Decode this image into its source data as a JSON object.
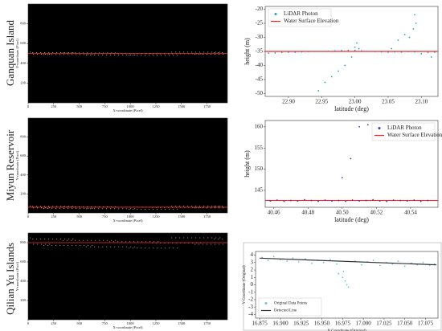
{
  "row_labels": [
    "Ganquan Island",
    "Miyun Reservoir",
    "Qilian Yu Islands"
  ],
  "chart_data": [
    {
      "type": "image",
      "xlabel": "X-coordinate (Pixel)",
      "ylabel": "Y-coordinate (Pixel)",
      "xlim": [
        0,
        1950
      ],
      "ylim": [
        0,
        1000
      ],
      "xticks": [
        0,
        250,
        500,
        750,
        1000,
        1250,
        1500,
        1750
      ],
      "yticks": [
        200,
        400,
        600,
        800
      ],
      "hline": {
        "value": 500,
        "color": "#ff2a2a"
      }
    },
    {
      "type": "scatter",
      "xlabel": "latitude (deg)",
      "ylabel": "height (m)",
      "xlim": [
        22.865,
        23.125
      ],
      "ylim": [
        -51,
        -19
      ],
      "legend": "upper left",
      "xticks": [
        {
          "value": 22.9,
          "label": "22.90"
        },
        {
          "value": 22.95,
          "label": "22.95"
        },
        {
          "value": 23.0,
          "label": "23.00"
        },
        {
          "value": 23.05,
          "label": "23.05"
        },
        {
          "value": 23.1,
          "label": "23.10"
        }
      ],
      "yticks": [
        -50,
        -45,
        -40,
        -35,
        -30,
        -25,
        -20
      ],
      "series": [
        {
          "name": "LiDAR Photon",
          "color": "#2a9fb5",
          "x": [
            22.87,
            22.88,
            22.89,
            22.9,
            22.91,
            22.92,
            22.93,
            22.94,
            22.95,
            22.96,
            22.97,
            22.98,
            22.99,
            23.0,
            23.01,
            23.02,
            23.03,
            23.04,
            23.05,
            23.06,
            23.07,
            23.08,
            23.09,
            23.1,
            23.11,
            23.12,
            22.945,
            22.955,
            22.965,
            22.975,
            22.985,
            22.995,
            23.0,
            23.003,
            23.006,
            23.055,
            23.065,
            23.075,
            23.082,
            23.088,
            23.09,
            23.092,
            23.1,
            23.115
          ],
          "values": [
            -35.6,
            -35.5,
            -35.4,
            -35.3,
            -35.3,
            -35.2,
            -35.1,
            -35,
            -35,
            -34.9,
            -34.8,
            -34.7,
            -34.6,
            -34.6,
            -34.8,
            -35,
            -35.1,
            -35.2,
            -35.3,
            -35.2,
            -35.3,
            -35.1,
            -35.2,
            -35,
            -35.4,
            -35.3,
            -49,
            -46,
            -44,
            -42,
            -40,
            -37,
            -33.5,
            -32,
            -34,
            -34,
            -31,
            -29,
            -30,
            -27,
            -22,
            -25,
            -35.8,
            -37
          ]
        }
      ],
      "hline": {
        "name": "Water Surface Elevation",
        "value": -35,
        "color": "#ff2020"
      }
    },
    {
      "type": "image",
      "xlabel": "X-coordinate (Pixel)",
      "ylabel": "Y-coordinate (Pixel)",
      "xlim": [
        0,
        1950
      ],
      "ylim": [
        0,
        1000
      ],
      "xticks": [
        0,
        250,
        500,
        750,
        1000,
        1250,
        1500,
        1750
      ],
      "yticks": [
        200,
        400,
        600,
        800
      ],
      "hline": {
        "value": 60,
        "color": "#ff2a2a"
      }
    },
    {
      "type": "scatter",
      "xlabel": "latitude (deg)",
      "ylabel": "height (m)",
      "xlim": [
        40.455,
        40.556
      ],
      "ylim": [
        141,
        161.5
      ],
      "legend": "upper right",
      "xticks": [
        {
          "value": 40.46,
          "label": "40.46"
        },
        {
          "value": 40.48,
          "label": "40.48"
        },
        {
          "value": 40.5,
          "label": "40.50"
        },
        {
          "value": 40.52,
          "label": "40.52"
        },
        {
          "value": 40.54,
          "label": "40.54"
        }
      ],
      "yticks": [
        145,
        150,
        155,
        160
      ],
      "series": [
        {
          "name": "LiDAR Photon",
          "color": "#3c3cb4",
          "x": [
            40.458,
            40.462,
            40.466,
            40.47,
            40.474,
            40.478,
            40.482,
            40.486,
            40.49,
            40.494,
            40.498,
            40.502,
            40.506,
            40.51,
            40.514,
            40.518,
            40.522,
            40.526,
            40.53,
            40.534,
            40.538,
            40.542,
            40.546,
            40.55,
            40.5,
            40.505,
            40.51,
            40.515
          ],
          "values": [
            142.5,
            142.7,
            142.4,
            142.6,
            142.5,
            142.8,
            142.6,
            142.4,
            142.7,
            142.5,
            142.6,
            142.4,
            142.7,
            142.5,
            142.6,
            142.8,
            142.5,
            142.4,
            142.7,
            142.6,
            142.5,
            142.7,
            142.4,
            142.6,
            148,
            152.5,
            160,
            160.5
          ]
        }
      ],
      "hline": {
        "name": "Water Surface Elevation",
        "value": 142.6,
        "color": "#ff2020"
      }
    },
    {
      "type": "image",
      "xlabel": "X-coordinate (Pixel)",
      "ylabel": "Y-coordinate (Pixel)",
      "xlim": [
        0,
        1950
      ],
      "ylim": [
        0,
        900
      ],
      "xticks": [
        0,
        250,
        500,
        750,
        1000,
        1250,
        1500,
        1750
      ],
      "yticks": [
        200,
        400,
        600,
        800
      ],
      "hline": {
        "value": 800,
        "color": "#ff2a2a"
      }
    },
    {
      "type": "scatter",
      "xlabel": "X Coordinate (Original)",
      "ylabel": "Y Coordinate (Original)",
      "xlim": [
        16.87,
        17.09
      ],
      "ylim": [
        -4.5,
        4.5
      ],
      "legend": "lower left",
      "xticks": [
        16.875,
        {
          "value": 16.9,
          "label": "16.900"
        },
        16.925,
        {
          "value": 16.95,
          "label": "16.950"
        },
        16.975,
        {
          "value": 17.0,
          "label": "17.000"
        },
        17.025,
        {
          "value": 17.05,
          "label": "17.050"
        },
        17.075
      ],
      "yticks": [
        -4,
        -3,
        -2,
        -1,
        0,
        1,
        2,
        3,
        4
      ],
      "series": [
        {
          "name": "Original Data Points",
          "color": "#6fc3e0",
          "x": [
            16.878,
            16.885,
            16.892,
            16.9,
            16.908,
            16.915,
            16.922,
            16.93,
            16.938,
            16.945,
            16.952,
            16.96,
            16.968,
            16.99,
            16.998,
            17.005,
            17.012,
            17.02,
            17.028,
            17.035,
            17.042,
            17.05,
            17.058,
            17.065,
            17.072,
            17.08,
            17.086,
            16.97,
            16.975,
            16.978,
            16.98,
            16.982,
            16.976
          ],
          "values": [
            3.7,
            3.3,
            3.8,
            3.4,
            3.2,
            3.6,
            3.1,
            3.5,
            2.9,
            3.3,
            3.0,
            3.4,
            2.8,
            3.2,
            2.7,
            3.1,
            3.3,
            2.6,
            3.0,
            2.8,
            3.2,
            2.5,
            2.9,
            2.7,
            3.0,
            2.6,
            2.8,
            1.5,
            1.0,
            0.5,
            0,
            -0.3,
            1.8
          ]
        },
        {
          "name": "Detected Line",
          "color": "#333333",
          "mode": "line",
          "x": [
            16.875,
            17.088
          ],
          "values": [
            3.6,
            2.7
          ]
        }
      ]
    }
  ]
}
